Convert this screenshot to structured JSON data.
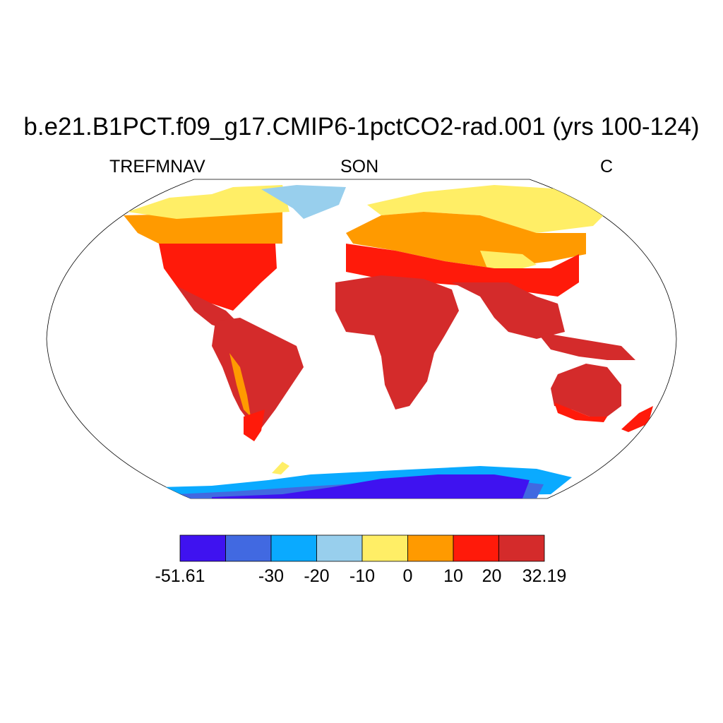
{
  "title": "b.e21.B1PCT.f09_g17.CMIP6-1pctCO2-rad.001 (yrs 100-124)",
  "subtitle_left": "TREFMNAV",
  "subtitle_center": "SON",
  "subtitle_right": "C",
  "colorbar": {
    "min": -51.61,
    "max": 32.19,
    "levels": [
      -40,
      -30,
      -20,
      -10,
      0,
      10,
      20
    ],
    "colors": [
      "#3f12f0",
      "#4169e1",
      "#0aaaff",
      "#98cfed",
      "#ffee66",
      "#ff9a00",
      "#ff1a0a",
      "#d42b2b"
    ],
    "labels": [
      "-51.61",
      "-30",
      "-20",
      "-10",
      "0",
      "10",
      "20",
      "32.19"
    ]
  },
  "chart_data": {
    "type": "heatmap",
    "projection": "Robinson",
    "variable": "TREFMNAV",
    "season": "SON",
    "units": "C",
    "range": [
      -51.61,
      32.19
    ],
    "regions": [
      {
        "region": "Arctic North America / Canadian Archipelago",
        "band": "-10 to 0"
      },
      {
        "region": "Greenland interior",
        "band": "-20 to -10"
      },
      {
        "region": "Canada south / Northern Europe",
        "band": "0 to 10"
      },
      {
        "region": "Central USA / Southern Europe / Central Asia",
        "band": "10 to 20"
      },
      {
        "region": "Tropics: South America, Africa, India, SE Asia, Australia",
        "band": "20 to 32.19"
      },
      {
        "region": "Siberia / Tibetan Plateau",
        "band": "-10 to 0"
      },
      {
        "region": "Antarctica coast",
        "band": "-30 to -20"
      },
      {
        "region": "Antarctica interior",
        "band": "-51.61 to -40"
      }
    ]
  }
}
